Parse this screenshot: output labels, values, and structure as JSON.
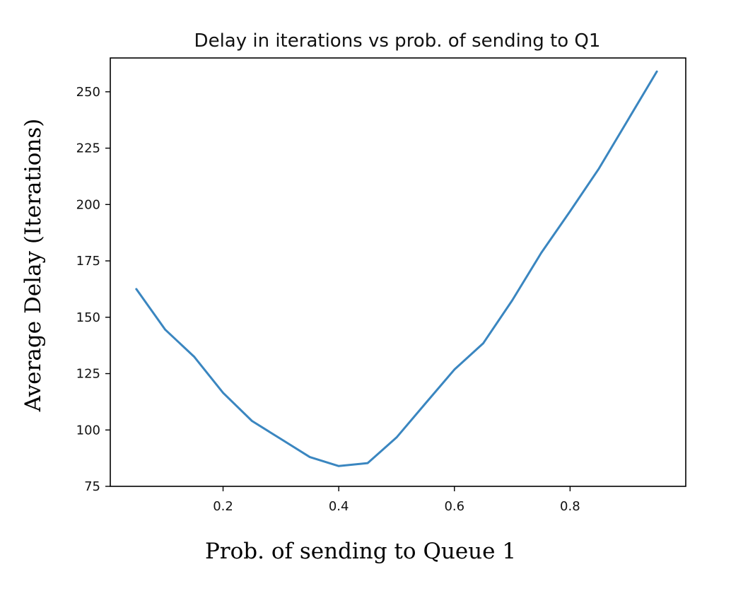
{
  "chart_data": {
    "type": "line",
    "title": "Delay in iterations vs prob. of sending to Q1",
    "xlabel": "Prob. of sending to Queue 1",
    "ylabel": "Average Delay (Iterations)",
    "xlim": [
      0.005,
      1.0
    ],
    "ylim": [
      75,
      265
    ],
    "xticks": [
      0.2,
      0.4,
      0.6,
      0.8
    ],
    "xtick_labels": [
      "0.2",
      "0.4",
      "0.6",
      "0.8"
    ],
    "yticks": [
      75,
      100,
      125,
      150,
      175,
      200,
      225,
      250
    ],
    "ytick_labels": [
      "75",
      "100",
      "125",
      "150",
      "175",
      "200",
      "225",
      "250"
    ],
    "grid": false,
    "line_color": "#3a86c0",
    "series": [
      {
        "x": [
          0.05,
          0.1,
          0.15,
          0.2,
          0.25,
          0.3,
          0.35,
          0.4,
          0.45,
          0.5,
          0.55,
          0.6,
          0.65,
          0.7,
          0.75,
          0.8,
          0.85,
          0.9,
          0.95
        ],
        "values": [
          162.5,
          144.5,
          132.5,
          116.5,
          104.0,
          96.0,
          88.0,
          84.0,
          85.3,
          96.7,
          111.8,
          126.8,
          138.5,
          157.5,
          178.5,
          197.0,
          216.0,
          237.5,
          259.0
        ]
      }
    ]
  }
}
